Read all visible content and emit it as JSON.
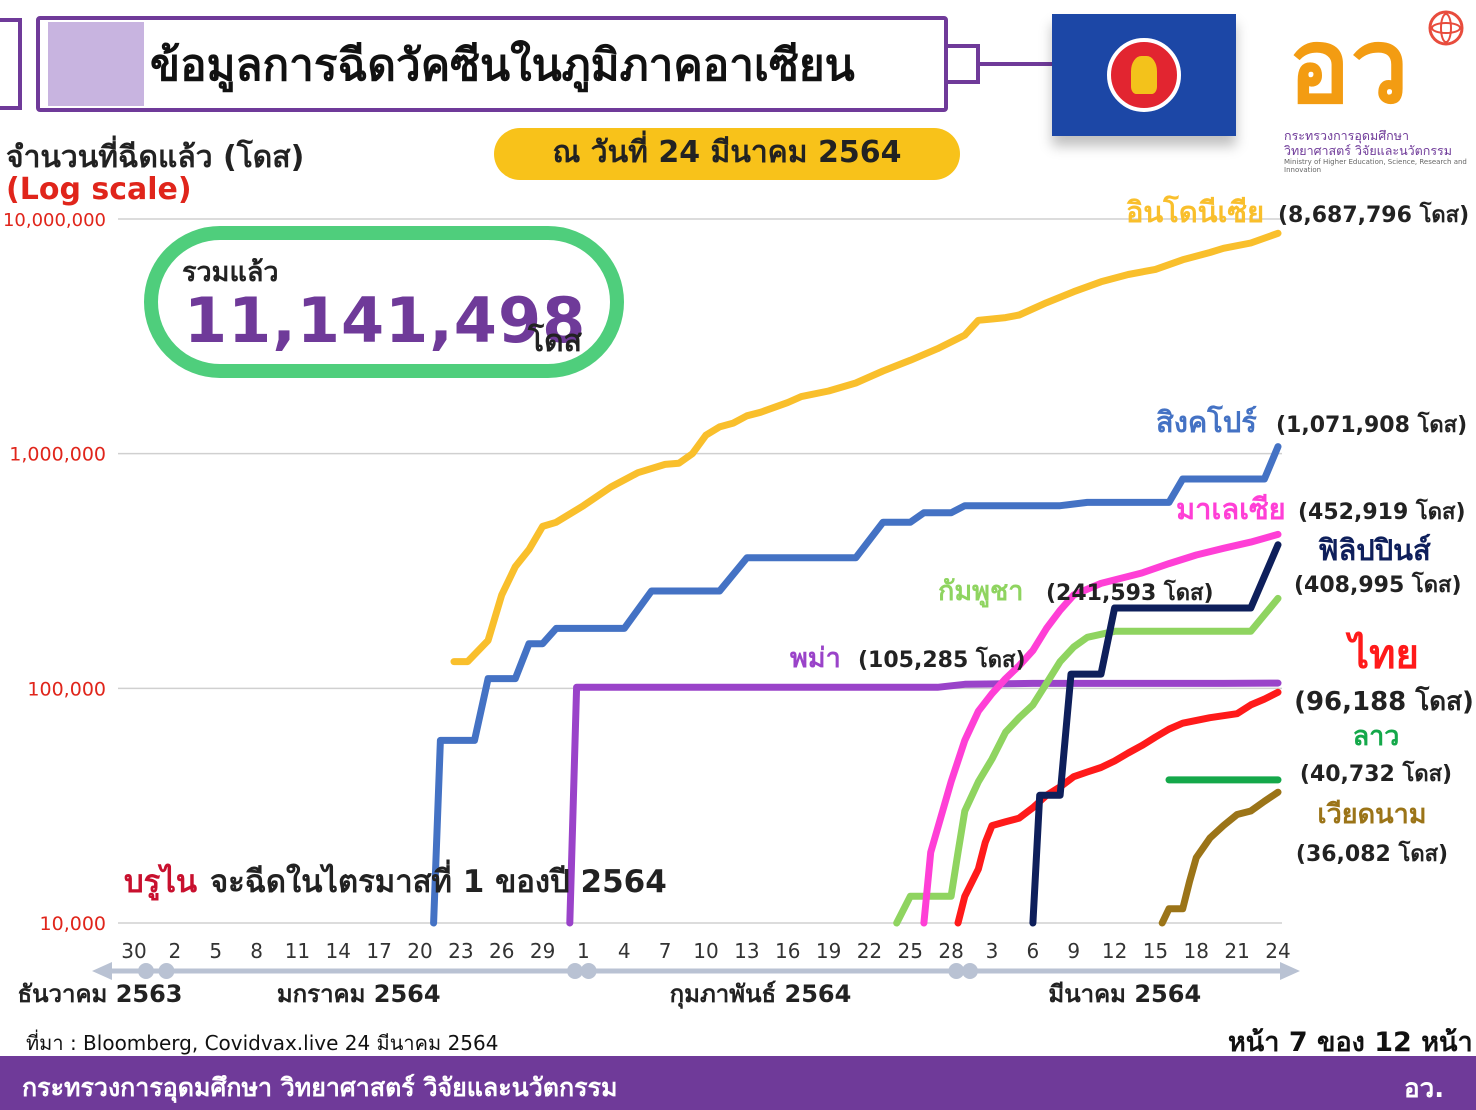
{
  "header": {
    "title": "ข้อมูลการฉีดวัคซีนในภูมิภาคอาเซียน",
    "date": "ณ วันที่ 24 มีนาคม  2564",
    "flag_name": "asean-flag",
    "ministry_logo_text": "อว",
    "ministry_name_lines": [
      "กระทรวงการอุดมศึกษา",
      "วิทยาศาสตร์ วิจัยและนวัตกรรม"
    ],
    "ministry_name_en": "Ministry of Higher Education, Science, Research and Innovation"
  },
  "axis_title": "จำนวนที่ฉีดแล้ว (โดส)",
  "log_note": "(Log scale)",
  "total": {
    "label": "รวมแล้ว",
    "value": "11,141,498",
    "unit": "โดส"
  },
  "colors": {
    "purple": "#6f3a99",
    "indonesia": "#f9bf2c",
    "singapore": "#4472c4",
    "malaysia": "#ff3fd6",
    "philippines": "#0e1f5b",
    "cambodia": "#8fd460",
    "myanmar": "#9a43c9",
    "thailand": "#ff1a1a",
    "laos": "#14a84a",
    "vietnam": "#9b7418"
  },
  "chart_data": {
    "type": "line",
    "title": "ข้อมูลการฉีดวัคซีนในภูมิภาคอาเซียน",
    "ylabel": "จำนวนที่ฉีดแล้ว (โดส)",
    "yscale": "log",
    "ylim": [
      10000,
      10000000
    ],
    "y_ticks": [
      {
        "value": 10000,
        "label": "10,000"
      },
      {
        "value": 100000,
        "label": "100,000"
      },
      {
        "value": 1000000,
        "label": "1,000,000"
      },
      {
        "value": 10000000,
        "label": "10,000,000"
      }
    ],
    "x_note": "x = days since 30 ธันวาคม 2563",
    "xlim": [
      0,
      84
    ],
    "x_ticks": [
      {
        "label": "30",
        "x": 0
      },
      {
        "label": "2",
        "x": 3
      },
      {
        "label": "5",
        "x": 6
      },
      {
        "label": "8",
        "x": 9
      },
      {
        "label": "11",
        "x": 12
      },
      {
        "label": "14",
        "x": 15
      },
      {
        "label": "17",
        "x": 18
      },
      {
        "label": "20",
        "x": 21
      },
      {
        "label": "23",
        "x": 24
      },
      {
        "label": "26",
        "x": 27
      },
      {
        "label": "29",
        "x": 30
      },
      {
        "label": "1",
        "x": 33
      },
      {
        "label": "4",
        "x": 36
      },
      {
        "label": "7",
        "x": 39
      },
      {
        "label": "10",
        "x": 42
      },
      {
        "label": "13",
        "x": 45
      },
      {
        "label": "16",
        "x": 48
      },
      {
        "label": "19",
        "x": 51
      },
      {
        "label": "22",
        "x": 54
      },
      {
        "label": "25",
        "x": 57
      },
      {
        "label": "28",
        "x": 60
      },
      {
        "label": "3",
        "x": 63
      },
      {
        "label": "6",
        "x": 66
      },
      {
        "label": "9",
        "x": 69
      },
      {
        "label": "12",
        "x": 72
      },
      {
        "label": "15",
        "x": 75
      },
      {
        "label": "18",
        "x": 78
      },
      {
        "label": "21",
        "x": 81
      },
      {
        "label": "24",
        "x": 84
      }
    ],
    "months": [
      {
        "label": "ธันวาคม 2563",
        "x0": -3,
        "x1": 1.5
      },
      {
        "label": "มกราคม 2564",
        "x0": 1.5,
        "x1": 31.5
      },
      {
        "label": "กุมภาพันธ์ 2564",
        "x0": 32.5,
        "x1": 59.5
      },
      {
        "label": "มีนาคม 2564",
        "x0": 60.5,
        "x1": 85
      }
    ],
    "series": [
      {
        "name": "อินโดนีเซีย",
        "value_label": "(8,687,796 โดส)",
        "color_key": "indonesia",
        "end_value": 8687796,
        "points": [
          [
            23.5,
            130000
          ],
          [
            24.5,
            130000
          ],
          [
            26,
            160000
          ],
          [
            27,
            250000
          ],
          [
            28,
            330000
          ],
          [
            29,
            390000
          ],
          [
            30,
            490000
          ],
          [
            31,
            510000
          ],
          [
            33,
            600000
          ],
          [
            35,
            720000
          ],
          [
            37,
            830000
          ],
          [
            39,
            900000
          ],
          [
            40,
            910000
          ],
          [
            41,
            1000000
          ],
          [
            42,
            1200000
          ],
          [
            43,
            1300000
          ],
          [
            44,
            1350000
          ],
          [
            45,
            1450000
          ],
          [
            46,
            1500000
          ],
          [
            48,
            1650000
          ],
          [
            49,
            1750000
          ],
          [
            51,
            1850000
          ],
          [
            53,
            2000000
          ],
          [
            55,
            2250000
          ],
          [
            57,
            2500000
          ],
          [
            59,
            2800000
          ],
          [
            61,
            3200000
          ],
          [
            62,
            3700000
          ],
          [
            63,
            3750000
          ],
          [
            64,
            3800000
          ],
          [
            65,
            3900000
          ],
          [
            67,
            4400000
          ],
          [
            69,
            4900000
          ],
          [
            71,
            5400000
          ],
          [
            73,
            5800000
          ],
          [
            75,
            6100000
          ],
          [
            77,
            6700000
          ],
          [
            79,
            7200000
          ],
          [
            80,
            7500000
          ],
          [
            82,
            7900000
          ],
          [
            84,
            8687796
          ]
        ]
      },
      {
        "name": "สิงคโปร์",
        "value_label": "(1,071,908 โดส)",
        "color_key": "singapore",
        "end_value": 1071908,
        "points": [
          [
            22,
            10000
          ],
          [
            22.5,
            60000
          ],
          [
            25,
            60000
          ],
          [
            26,
            110000
          ],
          [
            28,
            110000
          ],
          [
            29,
            155000
          ],
          [
            30,
            155000
          ],
          [
            31,
            180000
          ],
          [
            36,
            180000
          ],
          [
            38,
            260000
          ],
          [
            43,
            260000
          ],
          [
            45,
            360000
          ],
          [
            53,
            360000
          ],
          [
            55,
            510000
          ],
          [
            57,
            510000
          ],
          [
            58,
            560000
          ],
          [
            60,
            560000
          ],
          [
            61,
            600000
          ],
          [
            68,
            600000
          ],
          [
            70,
            620000
          ],
          [
            76,
            620000
          ],
          [
            77,
            780000
          ],
          [
            80,
            780000
          ],
          [
            83,
            780000
          ],
          [
            84,
            1071908
          ]
        ]
      },
      {
        "name": "มาเลเซีย",
        "value_label": "(452,919 โดส)",
        "color_key": "malaysia",
        "end_value": 452919,
        "points": [
          [
            58,
            10000
          ],
          [
            58.5,
            20000
          ],
          [
            60,
            40000
          ],
          [
            61,
            60000
          ],
          [
            62,
            80000
          ],
          [
            63,
            95000
          ],
          [
            64,
            110000
          ],
          [
            65,
            125000
          ],
          [
            66,
            145000
          ],
          [
            67,
            180000
          ],
          [
            68,
            215000
          ],
          [
            69,
            250000
          ],
          [
            71,
            280000
          ],
          [
            74,
            310000
          ],
          [
            76,
            340000
          ],
          [
            78,
            370000
          ],
          [
            80,
            395000
          ],
          [
            82,
            420000
          ],
          [
            84,
            452919
          ]
        ]
      },
      {
        "name": "ฟิลิปปินส์",
        "value_label": "(408,995 โดส)",
        "color_key": "philippines",
        "end_value": 408995,
        "points": [
          [
            66,
            10000
          ],
          [
            66.5,
            35000
          ],
          [
            68,
            35000
          ],
          [
            68.8,
            115000
          ],
          [
            71,
            115000
          ],
          [
            72,
            220000
          ],
          [
            74,
            220000
          ],
          [
            75,
            220000
          ],
          [
            77,
            220000
          ],
          [
            78,
            220000
          ],
          [
            79,
            220000
          ],
          [
            80,
            220000
          ],
          [
            81,
            220000
          ],
          [
            82,
            220000
          ],
          [
            83,
            300000
          ],
          [
            84,
            408995
          ]
        ]
      },
      {
        "name": "กัมพูชา",
        "value_label": "(241,593 โดส)",
        "color_key": "cambodia",
        "end_value": 241593,
        "points": [
          [
            56,
            10000
          ],
          [
            57,
            13000
          ],
          [
            60,
            13000
          ],
          [
            60.5,
            20000
          ],
          [
            61,
            30000
          ],
          [
            62,
            40000
          ],
          [
            63,
            50000
          ],
          [
            64,
            65000
          ],
          [
            65,
            75000
          ],
          [
            66,
            85000
          ],
          [
            67,
            105000
          ],
          [
            68,
            130000
          ],
          [
            69,
            150000
          ],
          [
            70,
            165000
          ],
          [
            72,
            175000
          ],
          [
            75,
            175000
          ],
          [
            78,
            175000
          ],
          [
            82,
            175000
          ],
          [
            84,
            241593
          ]
        ]
      },
      {
        "name": "พม่า",
        "value_label": "(105,285 โดส)",
        "color_key": "myanmar",
        "end_value": 105285,
        "points": [
          [
            32,
            10000
          ],
          [
            32.5,
            101000
          ],
          [
            59,
            101000
          ],
          [
            61,
            104000
          ],
          [
            66,
            105000
          ],
          [
            80,
            105000
          ],
          [
            84,
            105285
          ]
        ]
      },
      {
        "name": "ไทย",
        "value_label": "(96,188 โดส)",
        "color_key": "thailand",
        "end_value": 96188,
        "points": [
          [
            60.5,
            10000
          ],
          [
            61,
            13000
          ],
          [
            62,
            17000
          ],
          [
            62.5,
            22000
          ],
          [
            63,
            26000
          ],
          [
            64,
            27000
          ],
          [
            65,
            28000
          ],
          [
            66,
            31000
          ],
          [
            67,
            35000
          ],
          [
            68,
            38000
          ],
          [
            69,
            42000
          ],
          [
            70,
            44000
          ],
          [
            71,
            46000
          ],
          [
            72,
            49000
          ],
          [
            73,
            53000
          ],
          [
            74,
            57000
          ],
          [
            75,
            62000
          ],
          [
            76,
            67000
          ],
          [
            77,
            71000
          ],
          [
            79,
            75000
          ],
          [
            81,
            78000
          ],
          [
            82,
            85000
          ],
          [
            83,
            90000
          ],
          [
            84,
            96188
          ]
        ]
      },
      {
        "name": "ลาว",
        "value_label": "(40,732 โดส)",
        "color_key": "laos",
        "end_value": 40732,
        "points": [
          [
            76,
            40732
          ],
          [
            84,
            40732
          ]
        ]
      },
      {
        "name": "เวียดนาม",
        "value_label": "(36,082 โดส)",
        "color_key": "vietnam",
        "end_value": 36082,
        "points": [
          [
            75.5,
            10000
          ],
          [
            76,
            11500
          ],
          [
            77,
            11500
          ],
          [
            77.5,
            15000
          ],
          [
            78,
            19000
          ],
          [
            79,
            23000
          ],
          [
            80,
            26000
          ],
          [
            81,
            29000
          ],
          [
            82,
            30000
          ],
          [
            83,
            33000
          ],
          [
            84,
            36082
          ]
        ]
      }
    ],
    "annotation": {
      "country": "บรูไน",
      "text": "จะฉีดในไตรมาสที่ 1 ของปี 2564"
    }
  },
  "footer": {
    "source": "ที่มา : Bloomberg, Covidvax.live 24 มีนาคม 2564",
    "page": "หน้า 7 ของ 12 หน้า",
    "ministry": "กระทรวงการอุดมศึกษา วิทยาศาสตร์ วิจัยและนวัตกรรม",
    "org": "อว."
  }
}
